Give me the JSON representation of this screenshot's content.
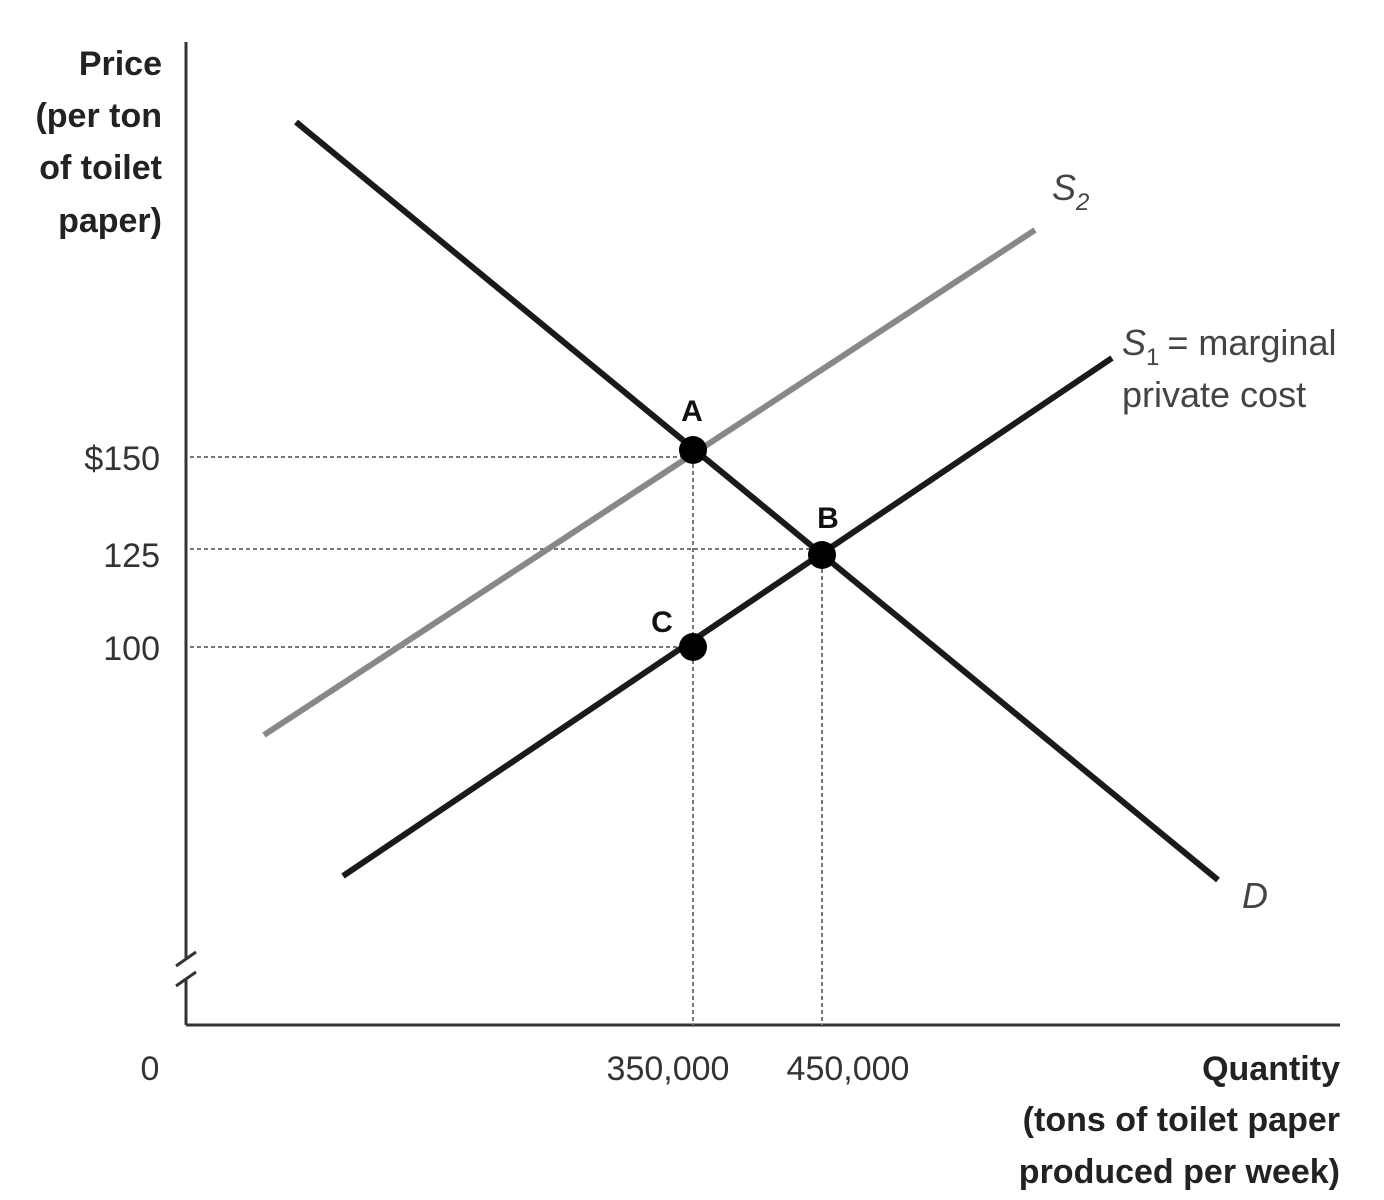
{
  "y_axis": {
    "label_lines": [
      "Price",
      "(per ton",
      "of toilet",
      "paper)"
    ],
    "ticks": [
      "$150",
      "125",
      "100"
    ]
  },
  "x_axis": {
    "label_lines": [
      "Quantity",
      "(tons of toilet paper",
      "produced per week)"
    ],
    "origin": "0",
    "ticks": [
      "350,000",
      "450,000"
    ]
  },
  "curves": {
    "s2": {
      "letter": "S",
      "sub": "2"
    },
    "s1": {
      "letter": "S",
      "sub": "1",
      "text_lines": [
        "= marginal",
        "private cost"
      ]
    },
    "d": {
      "letter": "D"
    }
  },
  "points": [
    "A",
    "B",
    "C"
  ]
}
